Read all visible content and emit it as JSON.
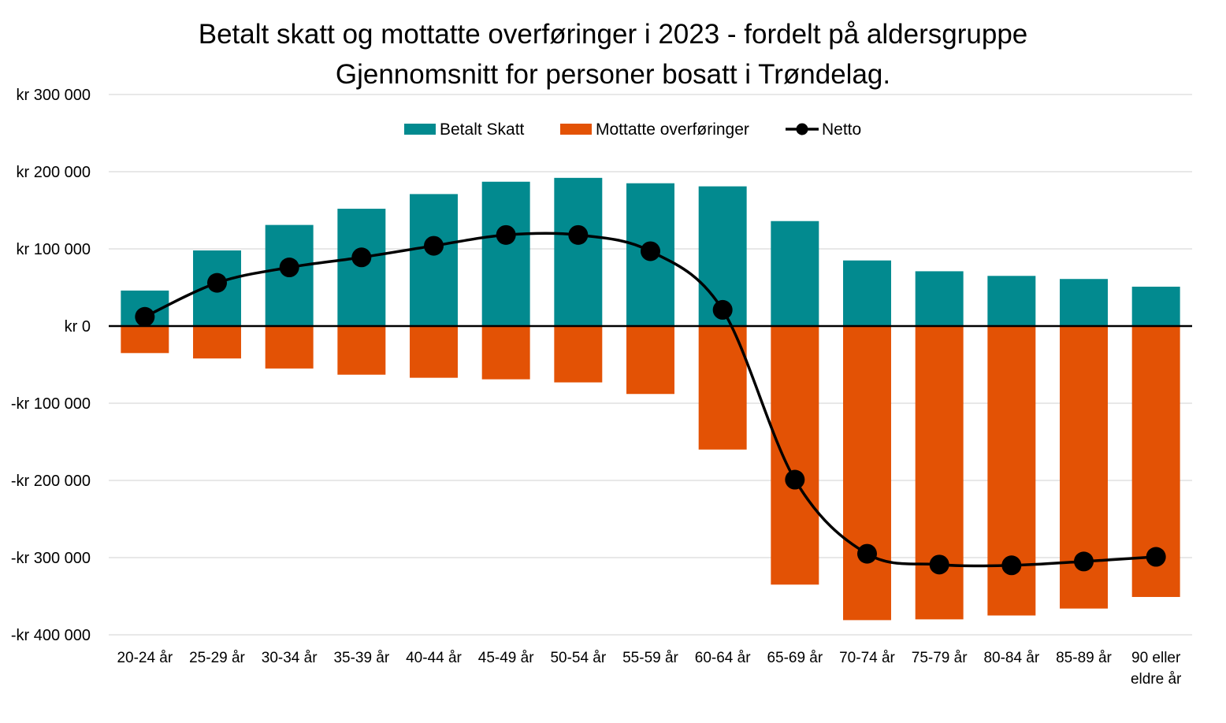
{
  "chart_data": {
    "type": "bar",
    "title": "Betalt skatt og mottatte overføringer i 2023 - fordelt på aldersgruppe",
    "subtitle": "Gjennomsnitt for personer bosatt i Trøndelag.",
    "xlabel": "",
    "ylabel": "",
    "ylim": [
      -400000,
      300000
    ],
    "yticks": [
      300000,
      200000,
      100000,
      0,
      -100000,
      -200000,
      -300000,
      -400000
    ],
    "ytick_labels": [
      "kr 300 000",
      "kr 200 000",
      "kr 100 000",
      "kr 0",
      "-kr 100 000",
      "-kr 200 000",
      "-kr 300 000",
      "-kr 400 000"
    ],
    "categories": [
      [
        "20-24 år"
      ],
      [
        "25-29 år"
      ],
      [
        "30-34 år"
      ],
      [
        "35-39 år"
      ],
      [
        "40-44 år"
      ],
      [
        "45-49 år"
      ],
      [
        "50-54 år"
      ],
      [
        "55-59 år"
      ],
      [
        "60-64 år"
      ],
      [
        "65-69 år"
      ],
      [
        "70-74 år"
      ],
      [
        "75-79 år"
      ],
      [
        "80-84 år"
      ],
      [
        "85-89 år"
      ],
      [
        "90 eller",
        "eldre år"
      ]
    ],
    "grid": true,
    "legend_position": "top-center",
    "series": [
      {
        "name": "Betalt Skatt",
        "type": "bar",
        "color": "#028A8F",
        "values": [
          46000,
          98000,
          131000,
          152000,
          171000,
          187000,
          192000,
          185000,
          181000,
          136000,
          85000,
          71000,
          65000,
          61000,
          51000
        ]
      },
      {
        "name": "Mottatte overføringer",
        "type": "bar",
        "color": "#E35205",
        "values": [
          -35000,
          -42000,
          -55000,
          -63000,
          -67000,
          -69000,
          -73000,
          -88000,
          -160000,
          -335000,
          -381000,
          -380000,
          -375000,
          -366000,
          -351000
        ]
      },
      {
        "name": "Netto",
        "type": "line",
        "color": "#000000",
        "values": [
          12000,
          56000,
          76000,
          89000,
          104000,
          118000,
          118000,
          97000,
          21000,
          -199000,
          -295000,
          -309000,
          -310000,
          -305000,
          -299000
        ]
      }
    ]
  }
}
